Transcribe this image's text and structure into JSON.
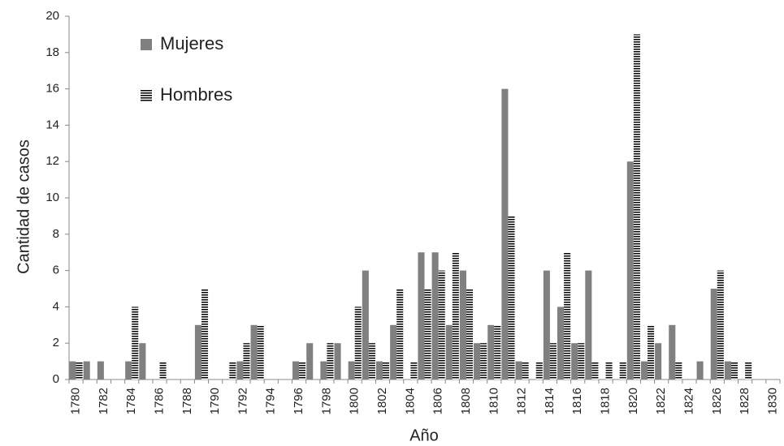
{
  "chart_data": {
    "type": "bar",
    "xlabel": "Año",
    "ylabel": "Cantidad de casos",
    "categories": [
      "1780",
      null,
      "1782",
      null,
      "1784",
      null,
      "1786",
      null,
      "1788",
      null,
      "1790",
      null,
      "1792",
      null,
      "1794",
      null,
      "1796",
      null,
      "1798",
      null,
      "1800",
      null,
      "1802",
      null,
      "1804",
      null,
      "1806",
      null,
      "1808",
      null,
      "1810",
      null,
      "1812",
      null,
      "1814",
      null,
      "1816",
      null,
      "1818",
      null,
      "1820",
      null,
      "1822",
      null,
      "1824",
      null,
      "1826",
      null,
      "1828",
      null,
      "1830"
    ],
    "series": [
      {
        "name": "Mujeres",
        "color": "#808080",
        "hatch": "none",
        "values": [
          1,
          1,
          1,
          0,
          1,
          2,
          0,
          0,
          0,
          3,
          0,
          0,
          1,
          3,
          0,
          0,
          1,
          2,
          1,
          2,
          1,
          6,
          1,
          3,
          0,
          7,
          7,
          3,
          6,
          2,
          3,
          16,
          1,
          0,
          6,
          4,
          2,
          6,
          0,
          0,
          12,
          1,
          2,
          3,
          0,
          1,
          5,
          1,
          0,
          0,
          0
        ]
      },
      {
        "name": "Hombres",
        "color": "#000000",
        "hatch": "horizontal",
        "values": [
          1,
          0,
          0,
          0,
          4,
          0,
          1,
          0,
          0,
          5,
          0,
          1,
          2,
          3,
          0,
          0,
          1,
          0,
          2,
          0,
          4,
          2,
          1,
          5,
          1,
          5,
          6,
          7,
          5,
          2,
          3,
          9,
          1,
          1,
          2,
          7,
          2,
          1,
          1,
          1,
          19,
          3,
          0,
          1,
          0,
          0,
          6,
          1,
          1,
          0,
          0
        ]
      }
    ],
    "ylim": [
      0,
      20
    ],
    "yticks": [
      0,
      2,
      4,
      6,
      8,
      10,
      12,
      14,
      16,
      18,
      20
    ],
    "legend": "upper-left",
    "grid": false
  }
}
